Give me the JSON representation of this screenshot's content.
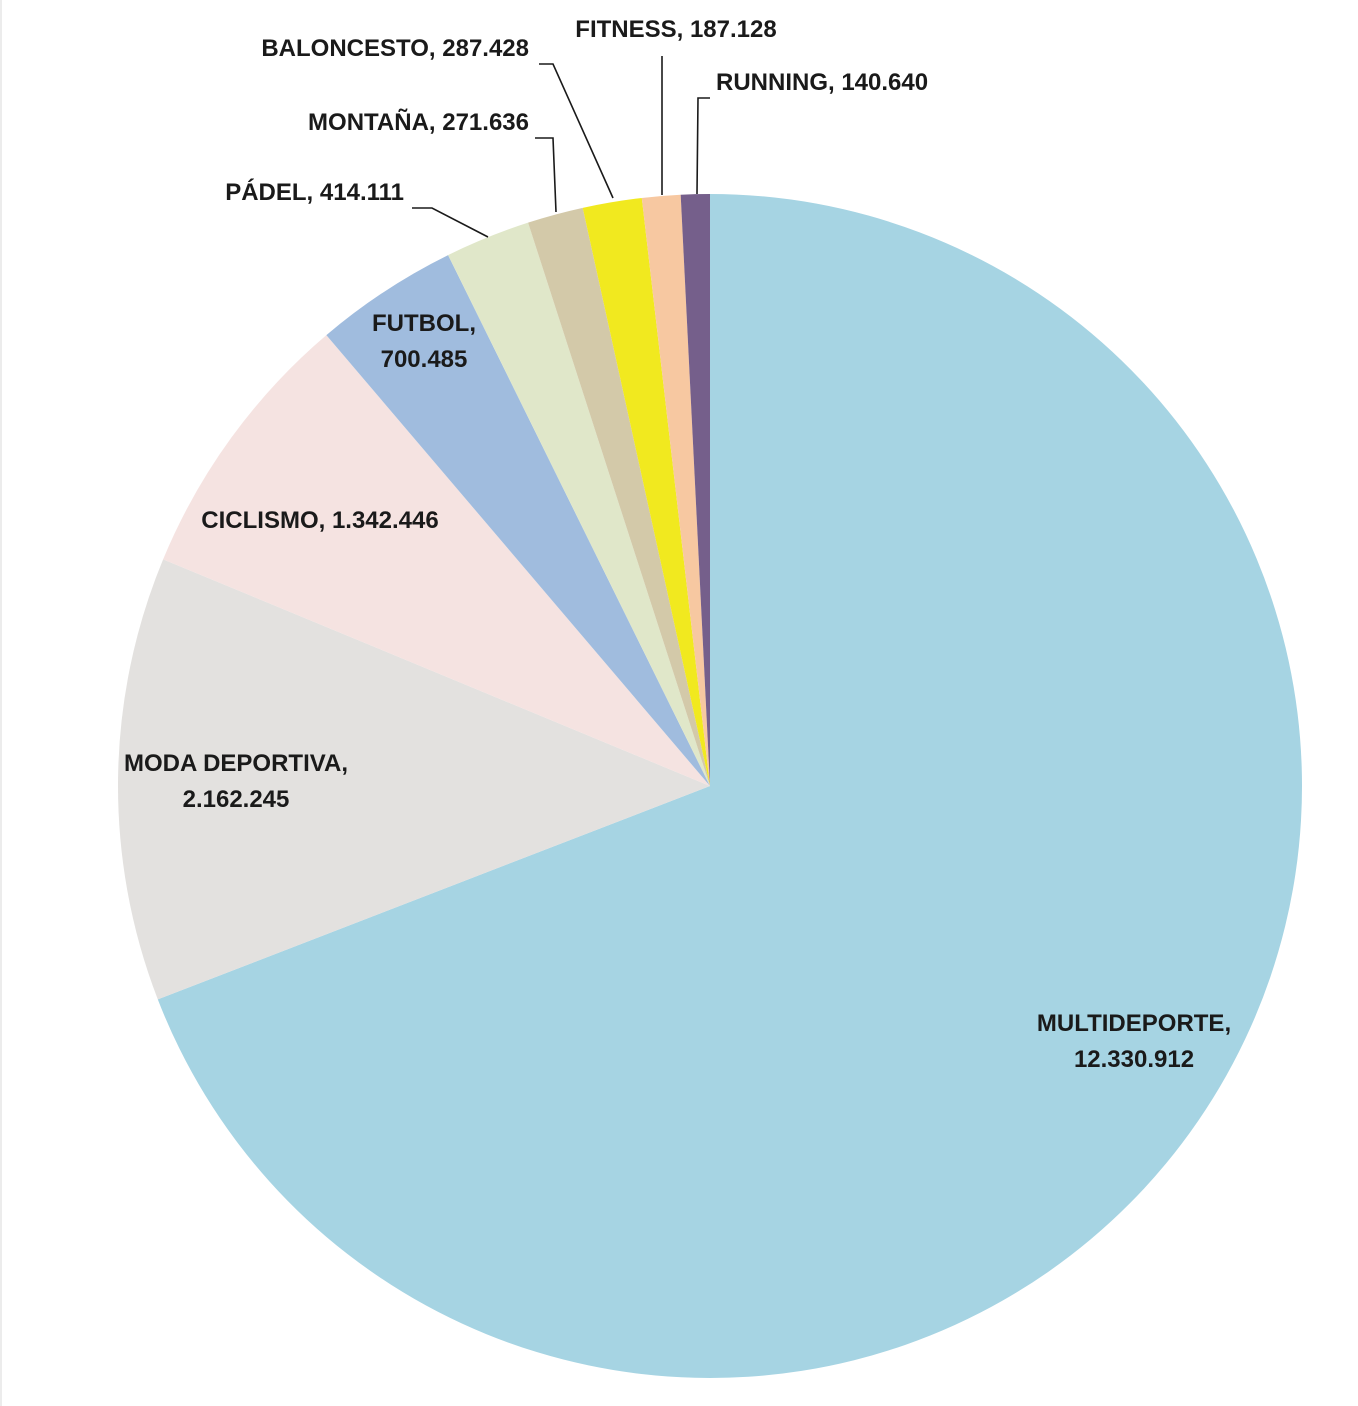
{
  "chart_data": {
    "type": "pie",
    "start": "12 o'clock",
    "direction": "clockwise",
    "slices": [
      {
        "label": "MULTIDEPORTE",
        "value_text": "12.330.912",
        "value": 12330912,
        "color": "#a6d4e3"
      },
      {
        "label": "MODA DEPORTIVA",
        "value_text": "2.162.245",
        "value": 2162245,
        "color": "#e3e1df"
      },
      {
        "label": "CICLISMO",
        "value_text": "1.342.446",
        "value": 1342446,
        "color": "#f5e3e1"
      },
      {
        "label": "FUTBOL",
        "value_text": "700.485",
        "value": 700485,
        "color": "#a0bcde"
      },
      {
        "label": "PÁDEL",
        "value_text": "414.111",
        "value": 414111,
        "color": "#e0e7c9"
      },
      {
        "label": "MONTAÑA",
        "value_text": "271.636",
        "value": 271636,
        "color": "#d3c9a9"
      },
      {
        "label": "BALONCESTO",
        "value_text": "287.428",
        "value": 287428,
        "color": "#f1e91f"
      },
      {
        "label": "FITNESS",
        "value_text": "187.128",
        "value": 187128,
        "color": "#f7c8a1"
      },
      {
        "label": "RUNNING",
        "value_text": "140.640",
        "value": 140640,
        "color": "#755f8b"
      }
    ]
  }
}
